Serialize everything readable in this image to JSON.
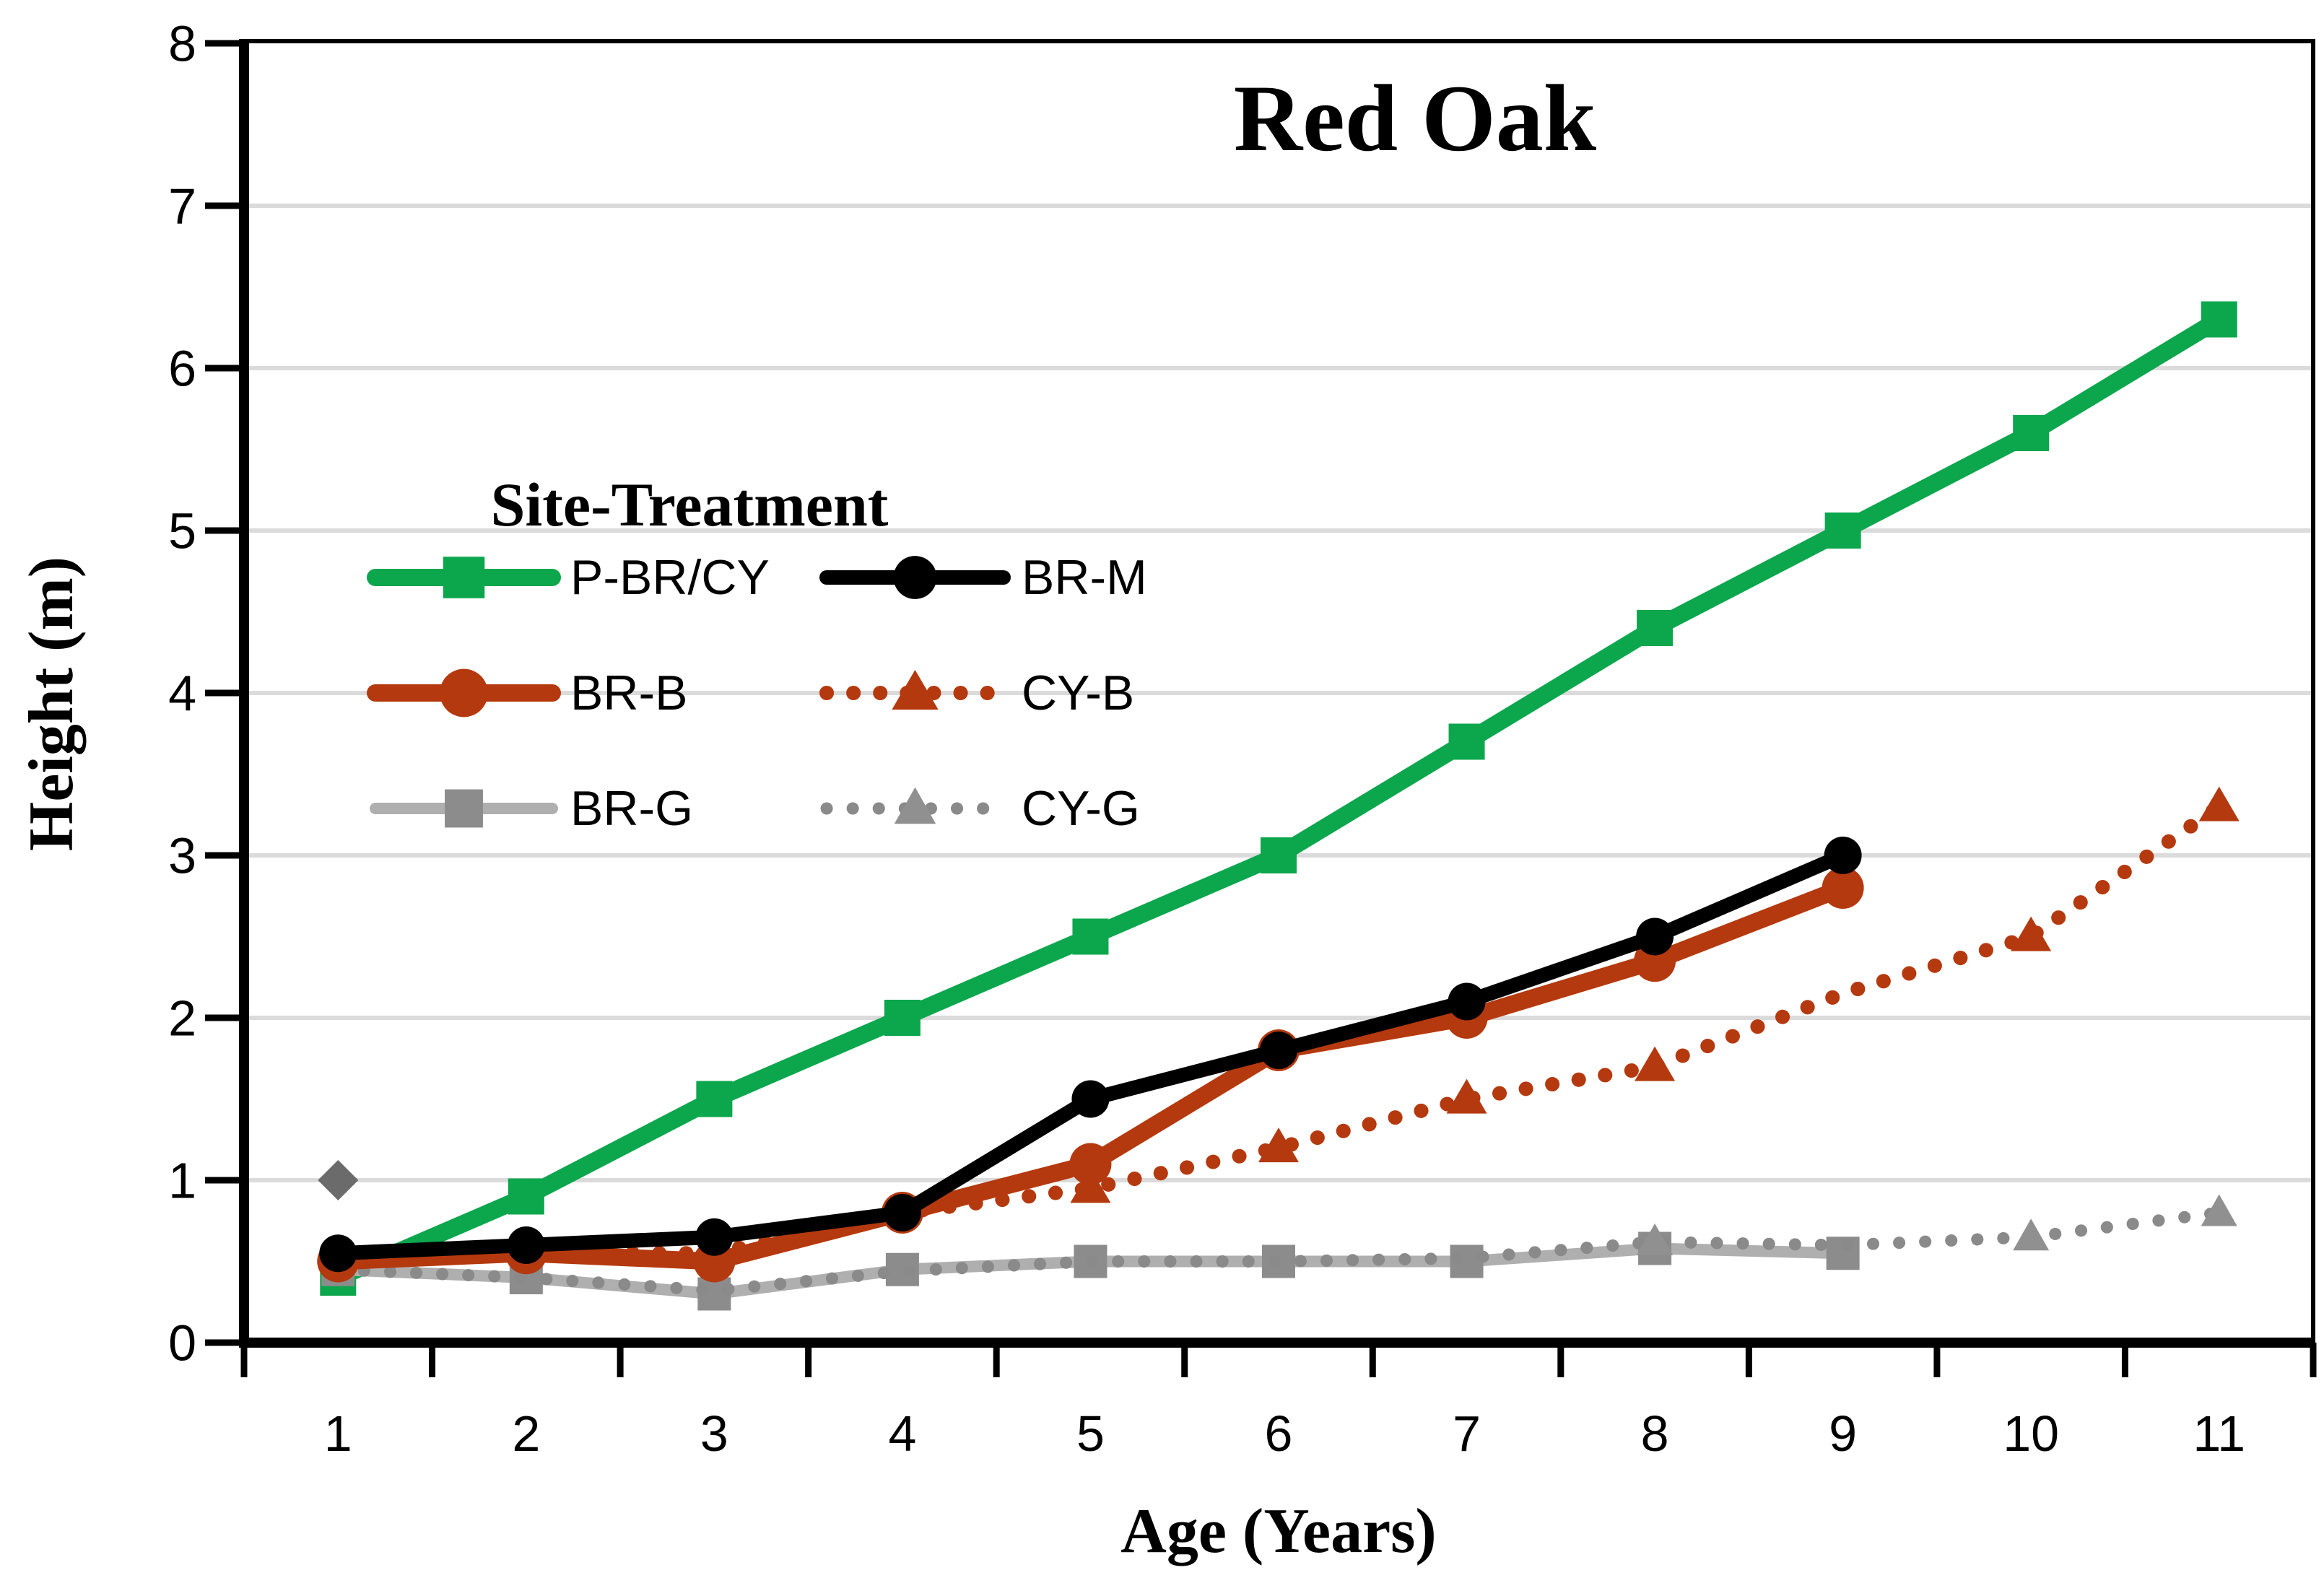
{
  "chart_data": {
    "type": "line",
    "title": "Red Oak",
    "xlabel": "Age (Years)",
    "ylabel": "Height (m)",
    "legend_title": "Site-Treatment",
    "x": [
      1,
      2,
      3,
      4,
      5,
      6,
      7,
      8,
      9,
      10,
      11
    ],
    "xticks": [
      1,
      2,
      3,
      4,
      5,
      6,
      7,
      8,
      9,
      10,
      11
    ],
    "yticks": [
      0,
      1,
      2,
      3,
      4,
      5,
      6,
      7,
      8
    ],
    "ylim": [
      0,
      8
    ],
    "grid": "horizontal-light",
    "gridline_color": "#DBDBDB",
    "legend_position": "upper-left-inside",
    "series": [
      {
        "name": "P-BR/CY",
        "color": "#0CA64D",
        "style": "solid",
        "marker": "square",
        "values": [
          0.4,
          0.9,
          1.5,
          2.0,
          2.5,
          3.0,
          3.7,
          4.4,
          5.0,
          5.6,
          6.3
        ]
      },
      {
        "name": "BR-M",
        "color": "#000000",
        "style": "solid",
        "marker": "circle",
        "values": [
          0.55,
          0.6,
          0.65,
          0.8,
          1.5,
          1.8,
          2.1,
          2.5,
          3.0
        ]
      },
      {
        "name": "BR-B",
        "color": "#B5390E",
        "style": "solid",
        "marker": "circle",
        "values": [
          0.5,
          0.55,
          0.5,
          0.8,
          1.1,
          1.8,
          2.0,
          2.35,
          2.8
        ]
      },
      {
        "name": "CY-B",
        "color": "#B5390E",
        "style": "dotted",
        "marker": "triangle",
        "values": [
          0.5,
          0.55,
          0.55,
          0.8,
          0.95,
          1.2,
          1.5,
          1.7,
          2.15,
          2.5,
          3.3
        ],
        "marker_ages": [
          3,
          5,
          6,
          7,
          8,
          10,
          11
        ]
      },
      {
        "name": "BR-G",
        "color": "#AFAFAF",
        "marker_color": "#8C8C8C",
        "style": "solid",
        "marker": "square",
        "values": [
          0.45,
          0.4,
          0.3,
          0.45,
          0.5,
          0.5,
          0.5,
          0.58,
          0.55
        ]
      },
      {
        "name": "CY-G",
        "color": "#8A8A8A",
        "marker_color": "#909090",
        "style": "dotted",
        "marker": "triangle",
        "values": [
          0.45,
          0.4,
          0.32,
          0.44,
          0.5,
          0.5,
          0.52,
          0.62,
          0.6,
          0.65,
          0.8
        ],
        "marker_ages": [
          8,
          10,
          11
        ]
      }
    ],
    "extra_points": [
      {
        "name": "unlabeled-diamond",
        "x": 1,
        "y": 1.0,
        "color": "#6B6B6B",
        "marker": "diamond"
      }
    ]
  }
}
